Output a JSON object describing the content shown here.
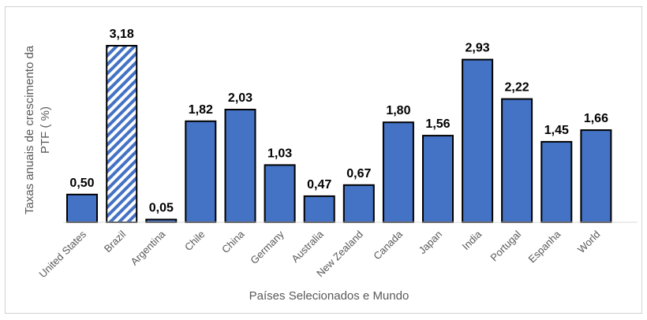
{
  "chart_data": {
    "type": "bar",
    "title": "",
    "xlabel": "Países Selecionados e Mundo",
    "ylabel_line1": "Taxas anuais de crescimento da",
    "ylabel_line2": "PTF ( %)",
    "ylim": [
      0,
      3.18
    ],
    "categories": [
      "United States",
      "Brazil",
      "Argentina",
      "Chile",
      "China",
      "Germany",
      "Australia",
      "New Zealand",
      "Canada",
      "Japan",
      "India",
      "Portugal",
      "Espanha",
      "World"
    ],
    "values": [
      0.5,
      3.18,
      0.05,
      1.82,
      2.03,
      1.03,
      0.47,
      0.67,
      1.8,
      1.56,
      2.93,
      2.22,
      1.45,
      1.66
    ],
    "value_labels": [
      "0,50",
      "3,18",
      "0,05",
      "1,82",
      "2,03",
      "1,03",
      "0,47",
      "0,67",
      "1,80",
      "1,56",
      "2,93",
      "2,22",
      "1,45",
      "1,66"
    ],
    "highlight_category": "Brazil",
    "grid": false,
    "legend": "none",
    "colors": {
      "bar": "#4472C4",
      "highlight_stripe": "#4472C4",
      "highlight_bg": "#ffffff",
      "bar_border": "#000000"
    }
  }
}
